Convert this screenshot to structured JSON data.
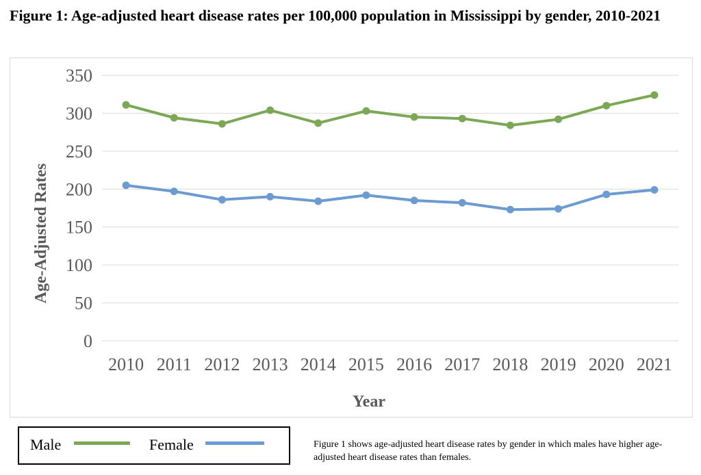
{
  "figure": {
    "title": "Figure 1: Age-adjusted heart disease rates per 100,000 population in Mississippi by gender, 2010-2021",
    "caption": "Figure 1 shows age-adjusted heart disease rates by gender in which males have higher age-adjusted heart disease rates than females."
  },
  "legend": {
    "male_label": "Male",
    "female_label": "Female"
  },
  "chart_data": {
    "type": "line",
    "title": "",
    "xlabel": "Year",
    "ylabel": "Age-Adjusted Rates",
    "categories": [
      "2010",
      "2011",
      "2012",
      "2013",
      "2014",
      "2015",
      "2016",
      "2017",
      "2018",
      "2019",
      "2020",
      "2021"
    ],
    "ylim": [
      0,
      350
    ],
    "yticks": [
      0,
      50,
      100,
      150,
      200,
      250,
      300,
      350
    ],
    "grid": true,
    "legend_position": "bottom-left, outside chart",
    "series": [
      {
        "name": "Male",
        "color": "#7aa854",
        "values": [
          311,
          294,
          286,
          304,
          287,
          303,
          295,
          293,
          284,
          292,
          310,
          324
        ]
      },
      {
        "name": "Female",
        "color": "#6b9bd1",
        "values": [
          205,
          197,
          186,
          190,
          184,
          192,
          185,
          182,
          173,
          174,
          193,
          199
        ]
      }
    ]
  }
}
